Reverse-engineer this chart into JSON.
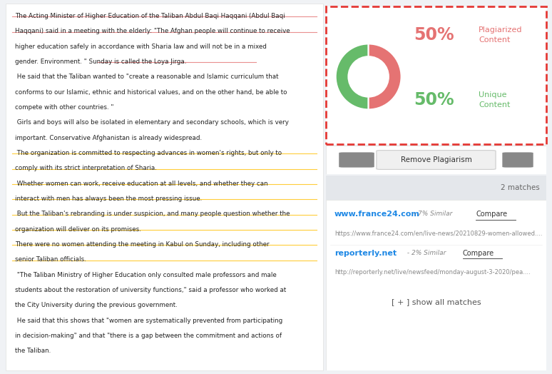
{
  "bg_color": "#f0f2f5",
  "left_panel_bg": "#ffffff",
  "right_panel_bg": "#ffffff",
  "left_text_lines": [
    {
      "text": "The Acting Minister of Higher Education of the Taliban Abdul Baqi Haqqani (Abdul Baqi",
      "highlight": "red_underline"
    },
    {
      "text": "Haqqani) said in a meeting with the elderly: \"The Afghan people will continue to receive",
      "highlight": "red_underline"
    },
    {
      "text": "higher education safely in accordance with Sharia law and will not be in a mixed",
      "highlight": "none"
    },
    {
      "text": "gender. Environment. \" Sunday is called the Loya Jirga.",
      "highlight": "red_underline_partial"
    },
    {
      "text": " He said that the Taliban wanted to \"create a reasonable and Islamic curriculum that",
      "highlight": "none"
    },
    {
      "text": "conforms to our Islamic, ethnic and historical values, and on the other hand, be able to",
      "highlight": "none"
    },
    {
      "text": "compete with other countries. \"",
      "highlight": "none"
    },
    {
      "text": " Girls and boys will also be isolated in elementary and secondary schools, which is very",
      "highlight": "none"
    },
    {
      "text": "important. Conservative Afghanistan is already widespread.",
      "highlight": "none"
    },
    {
      "text": " The organization is committed to respecting advances in women's rights, but only to",
      "highlight": "yellow_underline"
    },
    {
      "text": "comply with its strict interpretation of Sharia.",
      "highlight": "yellow_underline"
    },
    {
      "text": " Whether women can work, receive education at all levels, and whether they can",
      "highlight": "yellow_underline"
    },
    {
      "text": "interact with men has always been the most pressing issue.",
      "highlight": "yellow_underline"
    },
    {
      "text": " But the Taliban's rebranding is under suspicion, and many people question whether the",
      "highlight": "yellow_underline"
    },
    {
      "text": "organization will deliver on its promises.",
      "highlight": "yellow_underline"
    },
    {
      "text": "There were no women attending the meeting in Kabul on Sunday, including other",
      "highlight": "yellow_underline"
    },
    {
      "text": "senior Taliban officials.",
      "highlight": "yellow_underline"
    },
    {
      "text": " \"The Taliban Ministry of Higher Education only consulted male professors and male",
      "highlight": "none"
    },
    {
      "text": "students about the restoration of university functions,\" said a professor who worked at",
      "highlight": "none"
    },
    {
      "text": "the City University during the previous government.",
      "highlight": "none"
    },
    {
      "text": " He said that this shows that \"women are systematically prevented from participating",
      "highlight": "none"
    },
    {
      "text": "in decision-making\" and that \"there is a gap between the commitment and actions of",
      "highlight": "none"
    },
    {
      "text": "the Taliban.",
      "highlight": "none"
    }
  ],
  "donut_plagiarized_pct": 50,
  "donut_unique_pct": 50,
  "plagiarized_color": "#e57373",
  "unique_color": "#66bb6a",
  "plagiarized_label": "Plagiarized\nContent",
  "unique_label": "Unique\nContent",
  "border_color": "#e53935",
  "remove_btn_text": "Remove Plagiarism",
  "matches_count": "2 matches",
  "site1_url": "www.france24.com",
  "site1_similarity": " - 7% Similar",
  "site1_compare": "Compare",
  "site1_full_url": "https://www.france24.com/en/live-news/20210829-women-allowed....",
  "site2_url": "reporterly.net",
  "site2_similarity": " - 2% Similar",
  "site2_compare": "Compare",
  "site2_full_url": "http://reporterly.net/live/newsfeed/monday-august-3-2020/pea....",
  "show_all_text": "[ + ] show all matches",
  "link_color": "#1e88e5",
  "small_text_color": "#888888",
  "panel_border_color": "#e0e0e0"
}
